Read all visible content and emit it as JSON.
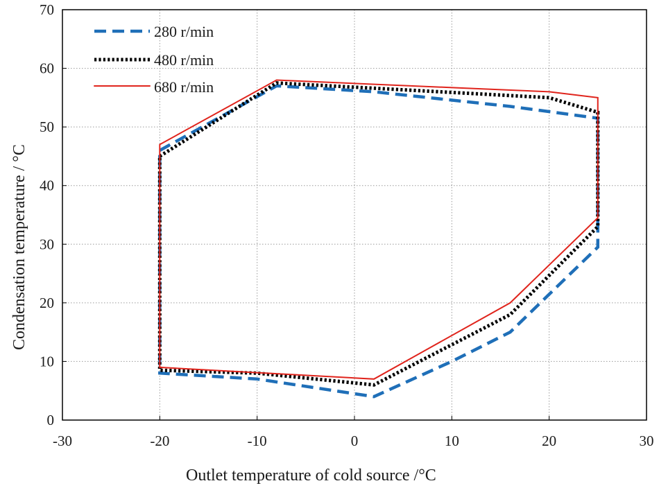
{
  "chart_data": {
    "type": "line",
    "title": "",
    "xlabel": "Outlet temperature of cold source /",
    "xlabel_unit": "°C",
    "ylabel": "Condensation temperature /",
    "ylabel_unit": "°C",
    "xlim": [
      -30,
      30
    ],
    "ylim": [
      0,
      70
    ],
    "xticks": [
      -30,
      -20,
      -10,
      0,
      10,
      20,
      30
    ],
    "yticks": [
      0,
      10,
      20,
      30,
      40,
      50,
      60,
      70
    ],
    "xtick_labels": [
      "-30",
      "-20",
      "-10",
      "0",
      "10",
      "20",
      "30"
    ],
    "ytick_labels": [
      "0",
      "10",
      "20",
      "30",
      "40",
      "50",
      "60",
      "70"
    ],
    "grid": true,
    "legend_position": "top-left",
    "series": [
      {
        "name": "280 r/min",
        "color": "#1f6fb8",
        "style": "dashed",
        "x": [
          -20,
          -8,
          2,
          16,
          25,
          25,
          16,
          10,
          2,
          -10,
          -20,
          -20
        ],
        "y": [
          46,
          57,
          56,
          53.5,
          51.5,
          29.5,
          15,
          10,
          4,
          7,
          8,
          46
        ]
      },
      {
        "name": "480 r/min",
        "color": "#000000",
        "style": "dotted",
        "x": [
          -20,
          -8,
          20,
          25,
          25,
          16,
          2,
          -10,
          -20,
          -20
        ],
        "y": [
          45,
          57.5,
          55,
          52.5,
          33,
          18,
          6,
          8,
          8.5,
          45
        ]
      },
      {
        "name": "680 r/min",
        "color": "#e0241c",
        "style": "solid",
        "x": [
          -20,
          -8,
          20,
          25,
          25,
          16,
          2,
          -20,
          -20
        ],
        "y": [
          47,
          58,
          56,
          55,
          34.5,
          20,
          7,
          9,
          47
        ]
      }
    ]
  }
}
